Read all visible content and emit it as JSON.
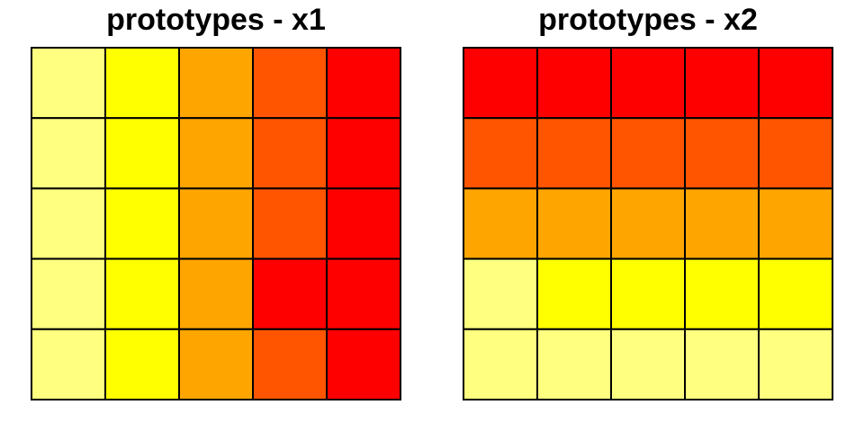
{
  "palette": [
    "#FFFF80",
    "#FFFF00",
    "#FFA500",
    "#FF5500",
    "#FF0000"
  ],
  "chart_data": [
    {
      "type": "heatmap",
      "title": "prototypes - x1",
      "rows": 5,
      "cols": 5,
      "levels": [
        [
          0,
          1,
          2,
          3,
          4
        ],
        [
          0,
          1,
          2,
          3,
          4
        ],
        [
          0,
          1,
          2,
          3,
          4
        ],
        [
          0,
          1,
          2,
          4,
          4
        ],
        [
          0,
          1,
          2,
          3,
          4
        ]
      ],
      "grid": true
    },
    {
      "type": "heatmap",
      "title": "prototypes - x2",
      "rows": 5,
      "cols": 5,
      "levels": [
        [
          4,
          4,
          4,
          4,
          4
        ],
        [
          3,
          3,
          3,
          3,
          3
        ],
        [
          2,
          2,
          2,
          2,
          2
        ],
        [
          0,
          1,
          1,
          1,
          1
        ],
        [
          0,
          0,
          0,
          0,
          0
        ]
      ],
      "grid": true
    }
  ]
}
